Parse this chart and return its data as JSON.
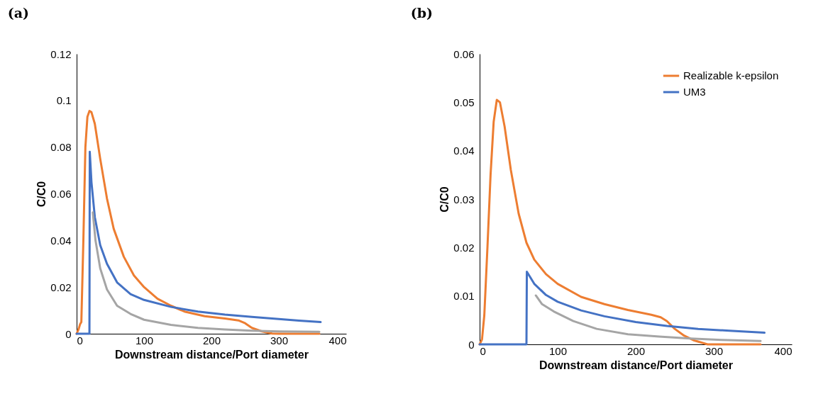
{
  "chart_data": [
    {
      "type": "line",
      "title": "(a)",
      "xlabel": "Downstream distance/Port diameter",
      "ylabel": "C/C0",
      "xlim": [
        0,
        400
      ],
      "xticks": [
        0,
        100,
        200,
        300,
        400
      ],
      "ylim": [
        0,
        0.12
      ],
      "yticks": [
        0,
        0.02,
        0.04,
        0.06,
        0.08,
        0.1,
        0.12
      ],
      "grid": false,
      "line_style": "solid",
      "marker": "none",
      "series": [
        {
          "color": "#ed7d31",
          "x": [
            0,
            3,
            5,
            7,
            10,
            13,
            16,
            19,
            22,
            27,
            35,
            45,
            55,
            70,
            85,
            100,
            120,
            140,
            160,
            190,
            220,
            240,
            250,
            260,
            275,
            290,
            300,
            360
          ],
          "values": [
            0,
            0.002,
            0.004,
            0.005,
            0.04,
            0.08,
            0.093,
            0.0955,
            0.095,
            0.09,
            0.075,
            0.058,
            0.045,
            0.033,
            0.025,
            0.02,
            0.015,
            0.012,
            0.0095,
            0.0075,
            0.0065,
            0.0057,
            0.0045,
            0.0025,
            0.001,
            0.0001,
            0,
            0
          ]
        },
        {
          "color": "#4472c4",
          "x": [
            0,
            19,
            19.5,
            22,
            27,
            35,
            45,
            60,
            80,
            100,
            140,
            180,
            220,
            260,
            300,
            330,
            362
          ],
          "values": [
            0,
            0,
            0.078,
            0.065,
            0.05,
            0.038,
            0.03,
            0.022,
            0.017,
            0.0145,
            0.0115,
            0.0095,
            0.0082,
            0.0072,
            0.0063,
            0.0056,
            0.005
          ]
        },
        {
          "color": "#a5a5a5",
          "x": [
            24,
            28,
            35,
            45,
            60,
            80,
            100,
            140,
            180,
            220,
            260,
            300,
            360
          ],
          "values": [
            0.052,
            0.04,
            0.028,
            0.019,
            0.012,
            0.0085,
            0.006,
            0.0038,
            0.0025,
            0.0018,
            0.0013,
            0.001,
            0.0008
          ]
        }
      ]
    },
    {
      "type": "line",
      "title": "(b)",
      "xlabel": "Downstream distance/Port diameter",
      "ylabel": "C/C0",
      "xlim": [
        0,
        400
      ],
      "xticks": [
        0,
        100,
        200,
        300,
        400
      ],
      "ylim": [
        0,
        0.06
      ],
      "yticks": [
        0,
        0.01,
        0.02,
        0.03,
        0.04,
        0.05,
        0.06
      ],
      "grid": false,
      "legend": "top right",
      "line_style": "solid",
      "marker": "none",
      "series": [
        {
          "name": "Realizable k-epsilon",
          "color": "#ed7d31",
          "x": [
            0,
            3,
            6,
            10,
            14,
            18,
            22,
            26,
            32,
            40,
            50,
            60,
            70,
            85,
            100,
            130,
            160,
            190,
            220,
            232,
            240,
            250,
            262,
            275,
            292,
            360
          ],
          "values": [
            0,
            0.001,
            0.006,
            0.02,
            0.035,
            0.046,
            0.0505,
            0.05,
            0.045,
            0.036,
            0.027,
            0.021,
            0.0175,
            0.0145,
            0.0125,
            0.0098,
            0.0083,
            0.0071,
            0.0061,
            0.0056,
            0.0048,
            0.0032,
            0.0018,
            0.0008,
            0,
            0
          ]
        },
        {
          "name": "UM3",
          "color": "#4472c4",
          "x": [
            0,
            60,
            60.5,
            70,
            85,
            100,
            130,
            160,
            200,
            240,
            280,
            320,
            365
          ],
          "values": [
            0,
            0,
            0.015,
            0.0125,
            0.0102,
            0.0088,
            0.007,
            0.0058,
            0.0046,
            0.0038,
            0.0032,
            0.0028,
            0.0024
          ]
        },
        {
          "color": "#a5a5a5",
          "x": [
            72,
            80,
            95,
            120,
            150,
            190,
            230,
            270,
            310,
            360
          ],
          "values": [
            0.0101,
            0.0083,
            0.0068,
            0.0048,
            0.0032,
            0.0021,
            0.0016,
            0.0012,
            0.0009,
            0.0007
          ]
        }
      ]
    }
  ]
}
